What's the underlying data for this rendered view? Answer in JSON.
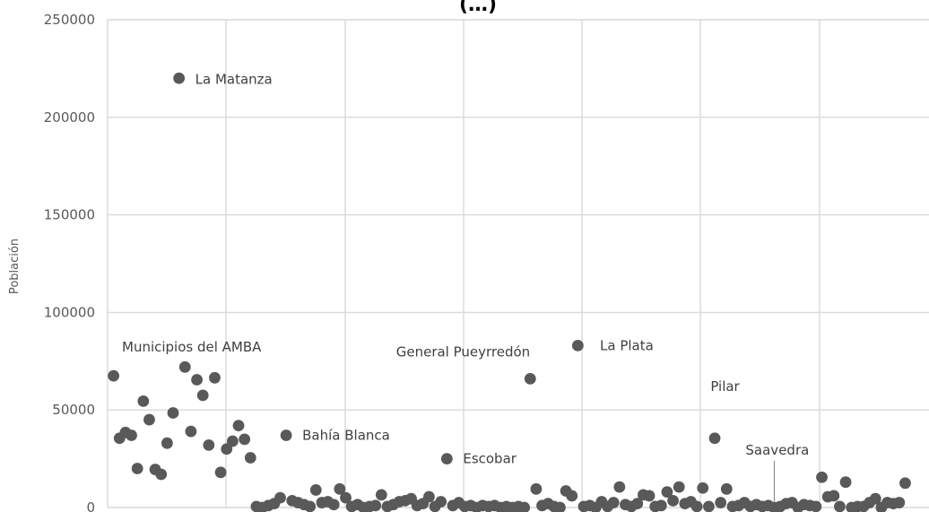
{
  "chart_data": {
    "type": "scatter",
    "title": "(…)",
    "xlabel": "",
    "ylabel": "Población",
    "ylim": [
      0,
      250000
    ],
    "yticks": [
      0,
      50000,
      100000,
      150000,
      200000,
      250000
    ],
    "grid": true,
    "series_color": "#595959",
    "annotations": [
      {
        "text": "La Matanza",
        "x": 12,
        "y": 220000
      },
      {
        "text": "Municipios del AMBA",
        "x": 1,
        "y": 80000
      },
      {
        "text": "Bahía Blanca",
        "x": 30,
        "y": 37000
      },
      {
        "text": "Escobar",
        "x": 57,
        "y": 25000
      },
      {
        "text": "General Pueyrredón",
        "x": 74,
        "y": 66000
      },
      {
        "text": "La Plata",
        "x": 80,
        "y": 83000
      },
      {
        "text": "Pilar",
        "x": 104,
        "y": 35000
      },
      {
        "text": "Saavedra",
        "x": 112,
        "y": 1000
      }
    ],
    "points": [
      {
        "x": 1,
        "y": 67500
      },
      {
        "x": 2,
        "y": 35500
      },
      {
        "x": 3,
        "y": 38500
      },
      {
        "x": 4,
        "y": 37000
      },
      {
        "x": 5,
        "y": 20000
      },
      {
        "x": 6,
        "y": 54500
      },
      {
        "x": 7,
        "y": 45000
      },
      {
        "x": 8,
        "y": 19500
      },
      {
        "x": 9,
        "y": 17000
      },
      {
        "x": 10,
        "y": 33000
      },
      {
        "x": 11,
        "y": 48500
      },
      {
        "x": 12,
        "y": 220000
      },
      {
        "x": 13,
        "y": 72000
      },
      {
        "x": 14,
        "y": 39000
      },
      {
        "x": 15,
        "y": 65500
      },
      {
        "x": 16,
        "y": 57500
      },
      {
        "x": 17,
        "y": 32000
      },
      {
        "x": 18,
        "y": 66500
      },
      {
        "x": 19,
        "y": 18000
      },
      {
        "x": 20,
        "y": 30000
      },
      {
        "x": 21,
        "y": 34000
      },
      {
        "x": 22,
        "y": 42000
      },
      {
        "x": 23,
        "y": 35000
      },
      {
        "x": 24,
        "y": 25500
      },
      {
        "x": 25,
        "y": 500
      },
      {
        "x": 26,
        "y": 0
      },
      {
        "x": 27,
        "y": 1000
      },
      {
        "x": 28,
        "y": 2000
      },
      {
        "x": 29,
        "y": 5000
      },
      {
        "x": 30,
        "y": 37000
      },
      {
        "x": 31,
        "y": 3500
      },
      {
        "x": 32,
        "y": 2500
      },
      {
        "x": 33,
        "y": 1500
      },
      {
        "x": 34,
        "y": 500
      },
      {
        "x": 35,
        "y": 9000
      },
      {
        "x": 36,
        "y": 2500
      },
      {
        "x": 37,
        "y": 3000
      },
      {
        "x": 38,
        "y": 1500
      },
      {
        "x": 39,
        "y": 9500
      },
      {
        "x": 40,
        "y": 5000
      },
      {
        "x": 41,
        "y": 500
      },
      {
        "x": 42,
        "y": 1500
      },
      {
        "x": 43,
        "y": 0
      },
      {
        "x": 44,
        "y": 500
      },
      {
        "x": 45,
        "y": 1000
      },
      {
        "x": 46,
        "y": 6500
      },
      {
        "x": 47,
        "y": 500
      },
      {
        "x": 48,
        "y": 1500
      },
      {
        "x": 49,
        "y": 3000
      },
      {
        "x": 50,
        "y": 3500
      },
      {
        "x": 51,
        "y": 4500
      },
      {
        "x": 52,
        "y": 1000
      },
      {
        "x": 53,
        "y": 2000
      },
      {
        "x": 54,
        "y": 5500
      },
      {
        "x": 55,
        "y": 500
      },
      {
        "x": 56,
        "y": 3000
      },
      {
        "x": 57,
        "y": 25000
      },
      {
        "x": 58,
        "y": 1000
      },
      {
        "x": 59,
        "y": 2500
      },
      {
        "x": 60,
        "y": 500
      },
      {
        "x": 61,
        "y": 1000
      },
      {
        "x": 62,
        "y": 0
      },
      {
        "x": 63,
        "y": 1000
      },
      {
        "x": 64,
        "y": 500
      },
      {
        "x": 65,
        "y": 1000
      },
      {
        "x": 66,
        "y": 0
      },
      {
        "x": 67,
        "y": 500
      },
      {
        "x": 68,
        "y": 0
      },
      {
        "x": 69,
        "y": 500
      },
      {
        "x": 70,
        "y": 0
      },
      {
        "x": 71,
        "y": 66000
      },
      {
        "x": 72,
        "y": 9500
      },
      {
        "x": 73,
        "y": 1000
      },
      {
        "x": 74,
        "y": 2000
      },
      {
        "x": 75,
        "y": 500
      },
      {
        "x": 76,
        "y": 0
      },
      {
        "x": 77,
        "y": 8500
      },
      {
        "x": 78,
        "y": 6000
      },
      {
        "x": 79,
        "y": 83000
      },
      {
        "x": 80,
        "y": 500
      },
      {
        "x": 81,
        "y": 1000
      },
      {
        "x": 82,
        "y": 0
      },
      {
        "x": 83,
        "y": 3000
      },
      {
        "x": 84,
        "y": 500
      },
      {
        "x": 85,
        "y": 2500
      },
      {
        "x": 86,
        "y": 10500
      },
      {
        "x": 87,
        "y": 1500
      },
      {
        "x": 88,
        "y": 500
      },
      {
        "x": 89,
        "y": 2000
      },
      {
        "x": 90,
        "y": 6500
      },
      {
        "x": 91,
        "y": 6000
      },
      {
        "x": 92,
        "y": 500
      },
      {
        "x": 93,
        "y": 1000
      },
      {
        "x": 94,
        "y": 8000
      },
      {
        "x": 95,
        "y": 3500
      },
      {
        "x": 96,
        "y": 10500
      },
      {
        "x": 97,
        "y": 2000
      },
      {
        "x": 98,
        "y": 3000
      },
      {
        "x": 99,
        "y": 500
      },
      {
        "x": 100,
        "y": 10000
      },
      {
        "x": 101,
        "y": 500
      },
      {
        "x": 102,
        "y": 35500
      },
      {
        "x": 103,
        "y": 2500
      },
      {
        "x": 104,
        "y": 9500
      },
      {
        "x": 105,
        "y": 500
      },
      {
        "x": 106,
        "y": 1000
      },
      {
        "x": 107,
        "y": 2500
      },
      {
        "x": 108,
        "y": 500
      },
      {
        "x": 109,
        "y": 1500
      },
      {
        "x": 110,
        "y": 500
      },
      {
        "x": 111,
        "y": 1000
      },
      {
        "x": 112,
        "y": 0
      },
      {
        "x": 113,
        "y": 500
      },
      {
        "x": 114,
        "y": 2000
      },
      {
        "x": 115,
        "y": 2500
      },
      {
        "x": 116,
        "y": 0
      },
      {
        "x": 117,
        "y": 1500
      },
      {
        "x": 118,
        "y": 1000
      },
      {
        "x": 119,
        "y": 500
      },
      {
        "x": 120,
        "y": 15500
      },
      {
        "x": 121,
        "y": 5500
      },
      {
        "x": 122,
        "y": 6000
      },
      {
        "x": 123,
        "y": 500
      },
      {
        "x": 124,
        "y": 13000
      },
      {
        "x": 125,
        "y": 0
      },
      {
        "x": 126,
        "y": 500
      },
      {
        "x": 127,
        "y": 500
      },
      {
        "x": 128,
        "y": 2500
      },
      {
        "x": 129,
        "y": 4500
      },
      {
        "x": 130,
        "y": 0
      },
      {
        "x": 131,
        "y": 2500
      },
      {
        "x": 132,
        "y": 2000
      },
      {
        "x": 133,
        "y": 2500
      },
      {
        "x": 134,
        "y": 12500
      }
    ]
  }
}
